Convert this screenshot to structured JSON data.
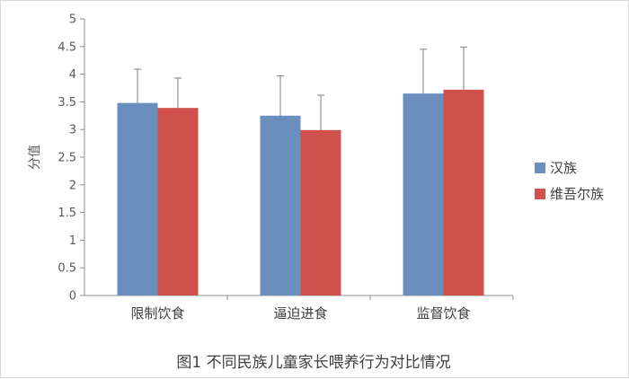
{
  "chart_data": {
    "type": "bar",
    "categories": [
      "限制饮食",
      "逼迫进食",
      "监督饮食"
    ],
    "series": [
      {
        "name": "汉族",
        "values": [
          3.48,
          3.25,
          3.65
        ],
        "error": [
          0.61,
          0.72,
          0.8
        ],
        "color": "#6a8fbf"
      },
      {
        "name": "维吾尔族",
        "values": [
          3.39,
          2.99,
          3.72
        ],
        "error": [
          0.54,
          0.63,
          0.77
        ],
        "color": "#d0504b"
      }
    ],
    "yticks": [
      "0",
      "0.5",
      "1",
      "1.5",
      "2",
      "2.5",
      "3",
      "3.5",
      "4",
      "4.5",
      "5"
    ],
    "ylabel": "分值",
    "xlabel": "",
    "ylim": [
      0,
      5
    ],
    "grid": false,
    "legend_position": "right",
    "caption": "图1 不同民族儿童家长喂养行为对比情况"
  }
}
